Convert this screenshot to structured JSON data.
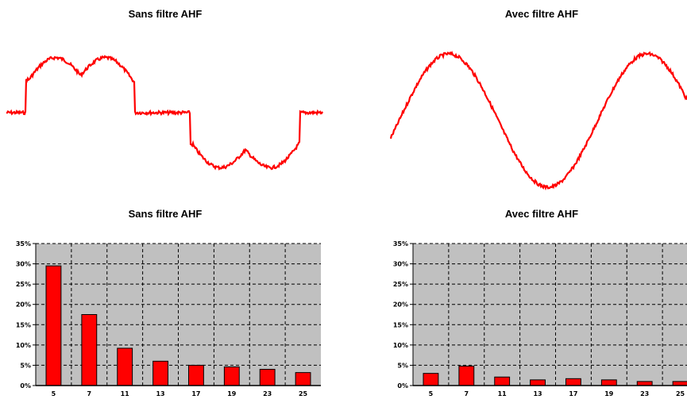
{
  "titles": {
    "wave_left": "Sans filtre AHF",
    "wave_right": "Avec filtre AHF",
    "bars_left": "Sans filtre AHF",
    "bars_right": "Avec filtre AHF"
  },
  "colors": {
    "series": "#ff0000",
    "plot_bg": "#c0c0c0",
    "grid": "#000000"
  },
  "chart_data": [
    {
      "type": "line",
      "title": "Sans filtre AHF",
      "description_shape": "distorted six-pulse rectifier current waveform",
      "axes_visible": false
    },
    {
      "type": "line",
      "title": "Avec filtre AHF",
      "description_shape": "sinusoidal current waveform",
      "axes_visible": false
    },
    {
      "type": "bar",
      "title": "Sans filtre AHF",
      "categories": [
        "5",
        "7",
        "11",
        "13",
        "17",
        "19",
        "23",
        "25"
      ],
      "values": [
        29.5,
        17.5,
        9.2,
        6.0,
        5.0,
        4.6,
        4.0,
        3.2
      ],
      "yticks": [
        "0%",
        "5%",
        "10%",
        "15%",
        "20%",
        "25%",
        "30%",
        "35%"
      ],
      "ylim": [
        0,
        35
      ],
      "grid": true
    },
    {
      "type": "bar",
      "title": "Avec filtre AHF",
      "categories": [
        "5",
        "7",
        "11",
        "13",
        "17",
        "19",
        "23",
        "25"
      ],
      "values": [
        3.0,
        4.8,
        2.1,
        1.4,
        1.7,
        1.4,
        1.0,
        1.0
      ],
      "yticks": [
        "0%",
        "5%",
        "10%",
        "15%",
        "20%",
        "25%",
        "30%",
        "35%"
      ],
      "ylim": [
        0,
        35
      ],
      "grid": true
    }
  ]
}
